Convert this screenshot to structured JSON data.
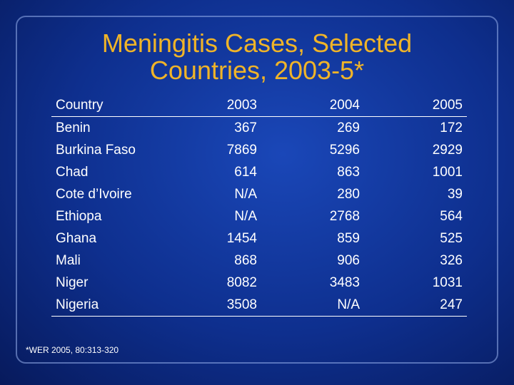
{
  "title": {
    "line1": "Meningitis Cases, Selected",
    "line2": "Countries, 2003-5*"
  },
  "table": {
    "headers": [
      "Country",
      "2003",
      "2004",
      "2005"
    ],
    "rows": [
      [
        "Benin",
        "367",
        "269",
        "172"
      ],
      [
        "Burkina Faso",
        "7869",
        "5296",
        "2929"
      ],
      [
        "Chad",
        "614",
        "863",
        "1001"
      ],
      [
        "Cote d’Ivoire",
        "N/A",
        "280",
        "39"
      ],
      [
        "Ethiopa",
        "N/A",
        "2768",
        "564"
      ],
      [
        "Ghana",
        "1454",
        "859",
        "525"
      ],
      [
        "Mali",
        "868",
        "906",
        "326"
      ],
      [
        "Niger",
        "8082",
        "3483",
        "1031"
      ],
      [
        "Nigeria",
        "3508",
        "N/A",
        "247"
      ]
    ]
  },
  "footnote": "*WER 2005, 80:313-320",
  "colors": {
    "title": "#f0b428",
    "text": "#ffffff",
    "background": "#0e2f8e"
  }
}
